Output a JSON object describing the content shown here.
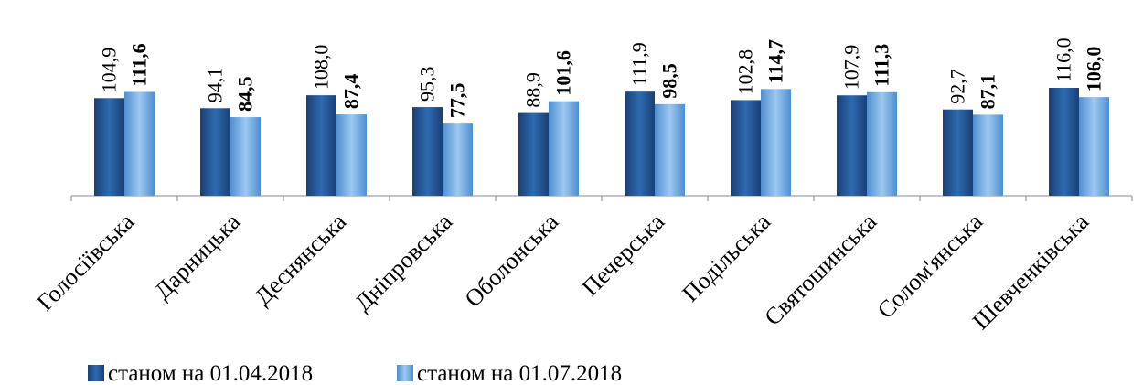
{
  "chart_data": {
    "type": "bar",
    "categories": [
      "Голосіївська",
      "Дарницька",
      "Деснянська",
      "Дніпровська",
      "Оболонська",
      "Печерська",
      "Подільська",
      "Святошинська",
      "Солом'янська",
      "Шевченківська"
    ],
    "series": [
      {
        "name": "станом на 01.04.2018",
        "values": [
          104.9,
          94.1,
          108.0,
          95.3,
          88.9,
          111.9,
          102.8,
          107.9,
          92.7,
          116.0
        ],
        "labels": [
          "104,9",
          "94,1",
          "108,0",
          "95,3",
          "88,9",
          "111,9",
          "102,8",
          "107,9",
          "92,7",
          "116,0"
        ],
        "color": "#1f4e8c"
      },
      {
        "name": "станом на 01.07.2018",
        "values": [
          111.6,
          84.5,
          87.4,
          77.5,
          101.6,
          98.5,
          114.7,
          111.3,
          87.1,
          106.0
        ],
        "labels": [
          "111,6",
          "84,5",
          "87,4",
          "77,5",
          "101,6",
          "98,5",
          "114,7",
          "111,3",
          "87,1",
          "106,0"
        ],
        "color": "#5b9bd5"
      }
    ],
    "legend_position": "bottom-left",
    "grid": false
  }
}
